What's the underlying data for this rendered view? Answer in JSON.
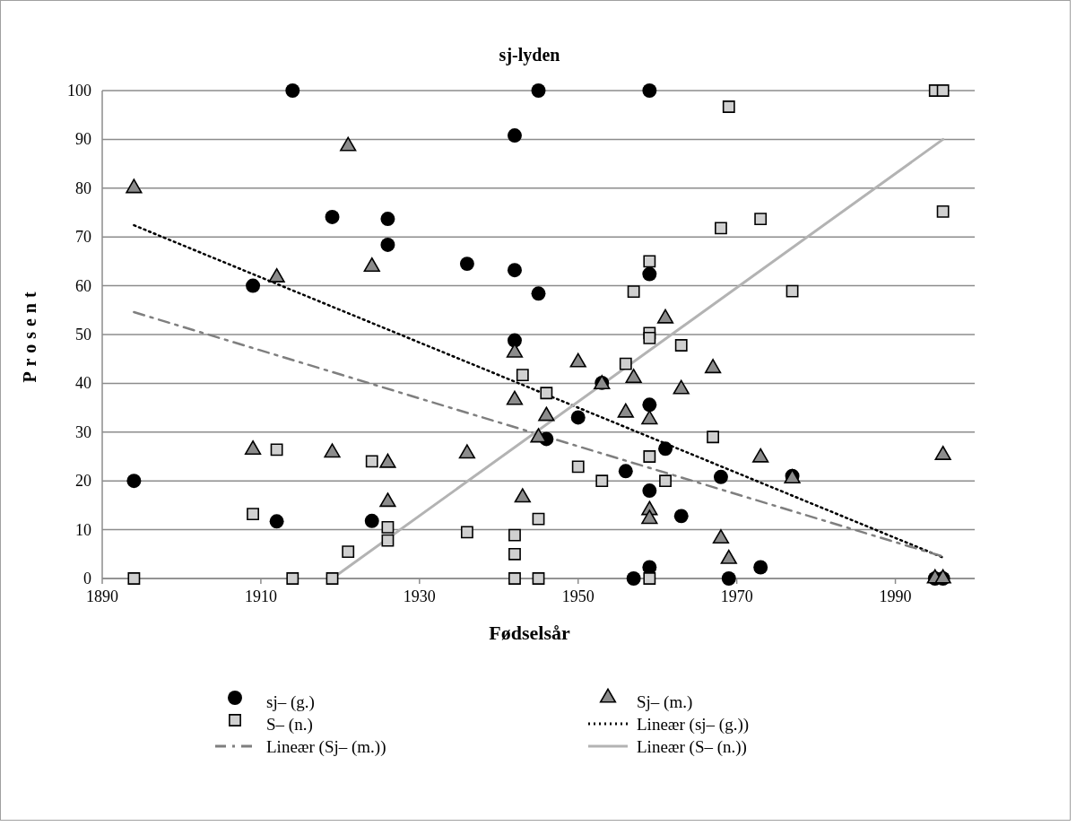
{
  "chart_data": {
    "type": "scatter",
    "title": "sj-lyden",
    "xlabel": "Fødselsår",
    "ylabel": "Prosent",
    "xlim": [
      1890,
      2000
    ],
    "xticks": [
      1890,
      1910,
      1930,
      1950,
      1970,
      1990
    ],
    "ylim": [
      0,
      100
    ],
    "yticks": [
      0,
      10,
      20,
      30,
      40,
      50,
      60,
      70,
      80,
      90,
      100
    ],
    "grid": "y",
    "legend": "bottom",
    "series": [
      {
        "name": "sj– (g.)",
        "marker": "circle",
        "color": "#000000",
        "x": [
          1894,
          1909,
          1912,
          1914,
          1919,
          1924,
          1926,
          1926,
          1936,
          1942,
          1942,
          1942,
          1945,
          1945,
          1946,
          1950,
          1953,
          1956,
          1957,
          1959,
          1959,
          1959,
          1959,
          1959,
          1961,
          1963,
          1968,
          1969,
          1973,
          1977,
          1995,
          1996
        ],
        "values": [
          20,
          60,
          11.7,
          100,
          74.1,
          11.8,
          73.7,
          68.4,
          64.5,
          90.8,
          63.2,
          48.8,
          100,
          58.4,
          28.6,
          33,
          40.1,
          22,
          0,
          100,
          62.4,
          35.6,
          18,
          2.3,
          26.6,
          12.8,
          20.8,
          0,
          2.3,
          21,
          0,
          0
        ]
      },
      {
        "name": "Sj– (m.)",
        "marker": "triangle",
        "color": "#8c8c8c",
        "x": [
          1894,
          1909,
          1912,
          1919,
          1921,
          1924,
          1926,
          1926,
          1936,
          1942,
          1942,
          1943,
          1945,
          1946,
          1950,
          1953,
          1956,
          1957,
          1959,
          1959,
          1959,
          1961,
          1963,
          1967,
          1968,
          1969,
          1973,
          1977,
          1995,
          1996,
          1996
        ],
        "values": [
          80,
          26.4,
          61.7,
          25.8,
          88.6,
          63.9,
          23.7,
          15.7,
          25.6,
          46.3,
          36.6,
          16.6,
          28.9,
          33.3,
          44.3,
          39.8,
          34,
          41.1,
          32.6,
          14,
          12.2,
          53.3,
          38.8,
          43.1,
          8.2,
          4,
          24.8,
          20.5,
          0,
          0,
          25.3
        ]
      },
      {
        "name": "S– (n.)",
        "marker": "square",
        "color": "#d0d0d0",
        "x": [
          1894,
          1909,
          1912,
          1914,
          1919,
          1921,
          1924,
          1926,
          1926,
          1936,
          1942,
          1942,
          1942,
          1943,
          1945,
          1945,
          1946,
          1950,
          1953,
          1956,
          1957,
          1959,
          1959,
          1959,
          1959,
          1959,
          1961,
          1963,
          1967,
          1968,
          1969,
          1973,
          1977,
          1995,
          1996,
          1996
        ],
        "values": [
          0,
          13.2,
          26.4,
          0,
          0,
          5.5,
          24,
          10.5,
          7.8,
          9.5,
          8.9,
          5,
          0,
          41.7,
          12.2,
          0,
          38,
          22.9,
          20,
          44,
          58.8,
          65,
          50.3,
          49.3,
          25,
          0,
          20,
          47.8,
          29,
          71.8,
          96.7,
          73.7,
          58.9,
          100,
          100,
          75.2
        ]
      },
      {
        "name": "Lineær (sj– (g.))",
        "type": "line",
        "line_style": "dotted",
        "color": "#000000",
        "x": [
          1894,
          1996
        ],
        "values": [
          72.4,
          4.3
        ]
      },
      {
        "name": "Lineær (Sj– (m.))",
        "type": "line",
        "line_style": "dashdot",
        "color": "#7f7f7f",
        "x": [
          1894,
          1996
        ],
        "values": [
          54.6,
          4.5
        ]
      },
      {
        "name": "Lineær (S– (n.))",
        "type": "line",
        "line_style": "solid",
        "color": "#b3b3b3",
        "x": [
          1919,
          1996
        ],
        "values": [
          0,
          90
        ]
      }
    ]
  }
}
